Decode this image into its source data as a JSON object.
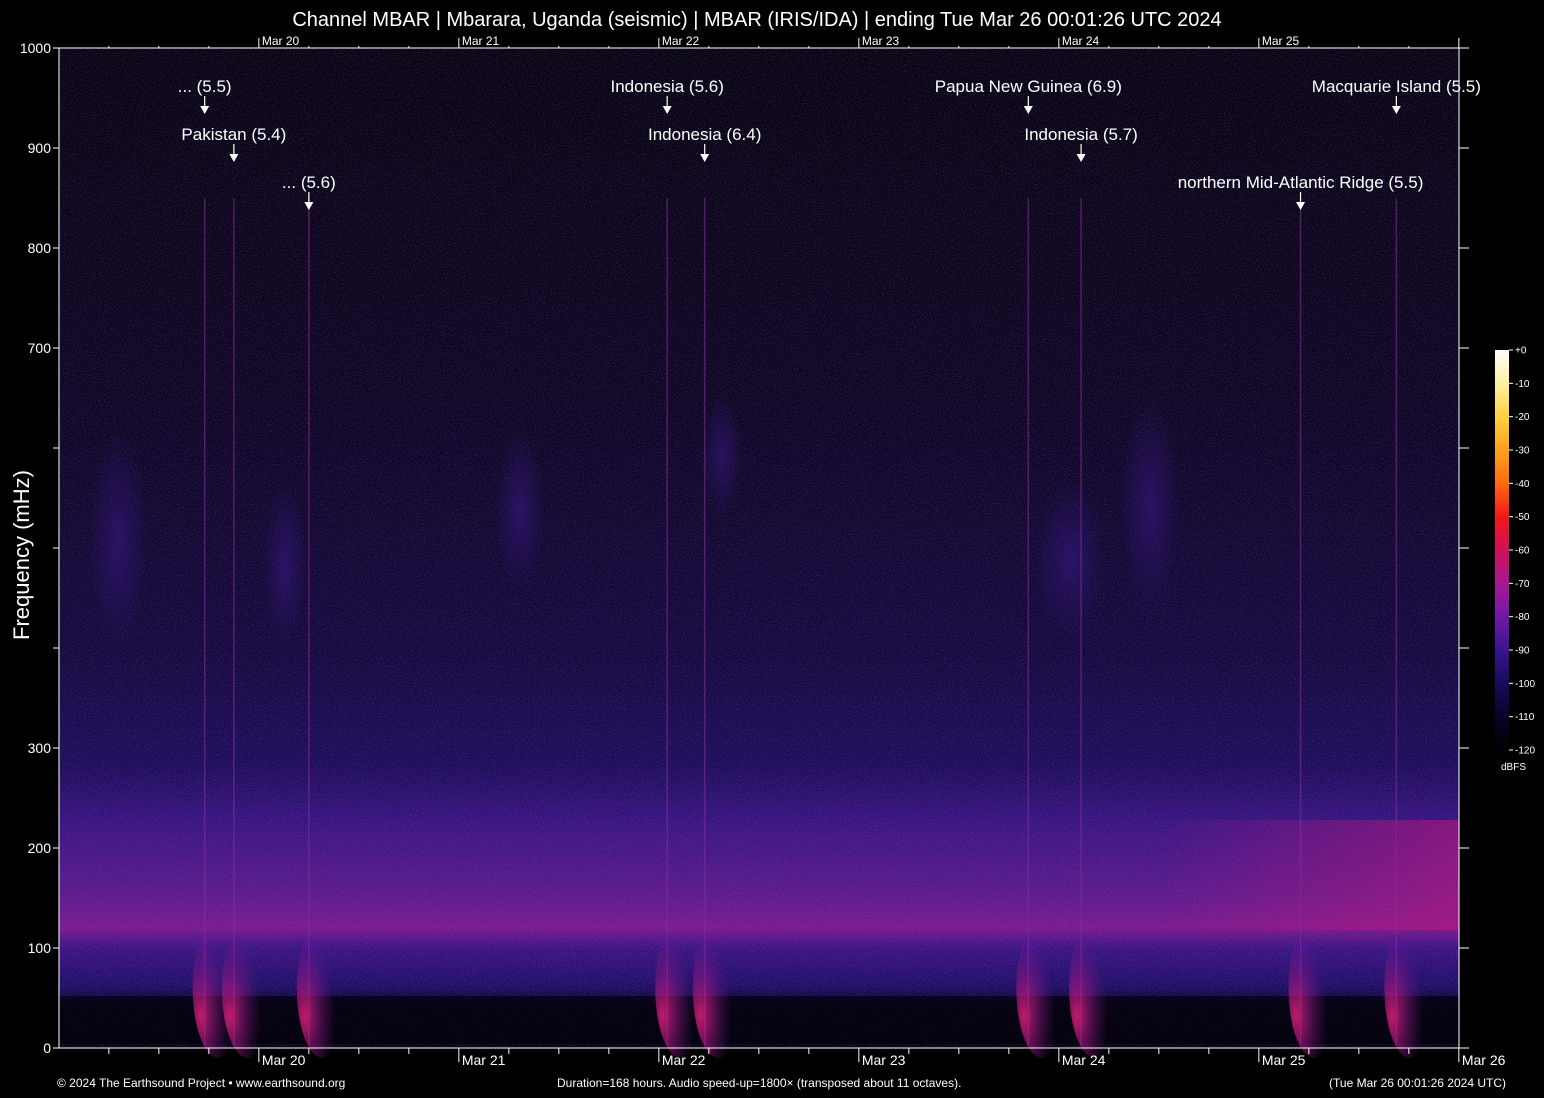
{
  "title": "Channel MBAR | Mbarara, Uganda (seismic) | MBAR (IRIS/IDA) | ending Tue Mar 26 00:01:26 UTC 2024",
  "footer": {
    "copyright": "© 2024 The Earthsound Project • www.earthsound.org",
    "duration": "Duration=168 hours. Audio speed-up=1800× (transposed about 11 octaves).",
    "timestamp": "(Tue Mar 26 00:01:26 2024 UTC)"
  },
  "colorbar": {
    "unit": "dBFS",
    "labels": [
      "+0",
      "-10",
      "-20",
      "-30",
      "-40",
      "-50",
      "-60",
      "-70",
      "-80",
      "-90",
      "-100",
      "-110",
      "-120"
    ],
    "colors": [
      "#ffffff",
      "#fff0a0",
      "#ffd040",
      "#ffa020",
      "#ff6a10",
      "#f01818",
      "#d0105a",
      "#a81890",
      "#7018a8",
      "#3a1490",
      "#180a5a",
      "#080428",
      "#000000"
    ]
  },
  "chart_data": {
    "type": "heatmap",
    "title": "Channel MBAR | Mbarara, Uganda (seismic) | MBAR (IRIS/IDA) | ending Tue Mar 26 00:01:26 UTC 2024",
    "xlabel": "",
    "ylabel": "Frequency (mHz)",
    "ylim": [
      0,
      1000
    ],
    "xlim": [
      "2024-03-19 00:01",
      "2024-03-26 00:01"
    ],
    "y_tick_labels": [
      "0",
      "100",
      "200",
      "300",
      "",
      "",
      "",
      "700",
      "800",
      "900",
      "1000"
    ],
    "y_tick_values": [
      0,
      100,
      200,
      300,
      400,
      500,
      600,
      700,
      800,
      900,
      1000
    ],
    "x_tick_labels": [
      "Mar 20",
      "Mar 21",
      "Mar 22",
      "Mar 23",
      "Mar 24",
      "Mar 25",
      "Mar 26"
    ],
    "x_tick_values": [
      "2024-03-20",
      "2024-03-21",
      "2024-03-22",
      "2024-03-23",
      "2024-03-24",
      "2024-03-25",
      "2024-03-26"
    ],
    "earthquakes": [
      {
        "label": "... (5.5)",
        "time": "2024-03-19 17:30"
      },
      {
        "label": "Pakistan (5.4)",
        "time": "2024-03-19 21:00"
      },
      {
        "label": "... (5.6)",
        "time": "2024-03-20 06:00"
      },
      {
        "label": "Indonesia (5.6)",
        "time": "2024-03-22 01:00"
      },
      {
        "label": "Indonesia (6.4)",
        "time": "2024-03-22 05:30"
      },
      {
        "label": "Papua New Guinea (6.9)",
        "time": "2024-03-23 20:20"
      },
      {
        "label": "Indonesia (5.7)",
        "time": "2024-03-24 02:40"
      },
      {
        "label": "northern Mid-Atlantic Ridge (5.5)",
        "time": "2024-03-25 05:00"
      },
      {
        "label": "Macquarie Island (5.5)",
        "time": "2024-03-25 16:30"
      }
    ]
  }
}
